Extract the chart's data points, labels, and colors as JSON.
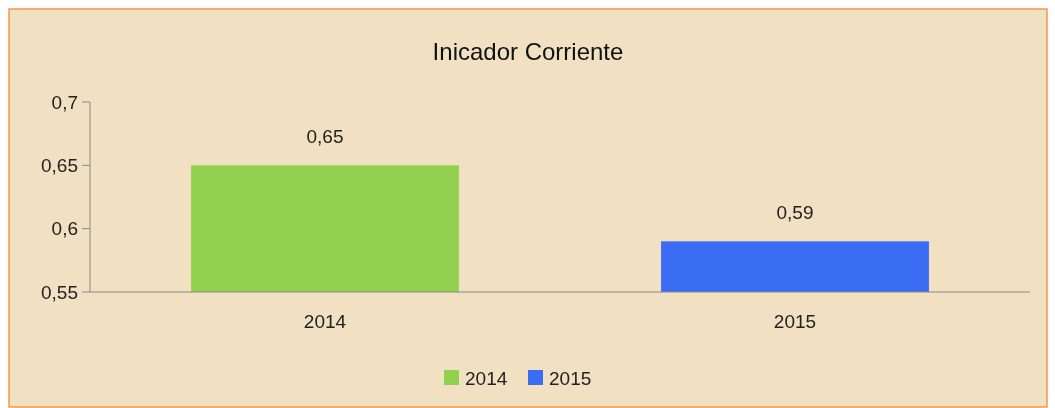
{
  "chart_data": {
    "type": "bar",
    "title": "Inicador Corriente",
    "categories": [
      "2014",
      "2015"
    ],
    "series": [
      {
        "name": "2014",
        "color": "#92d050",
        "values": [
          0.65,
          null
        ],
        "value_labels": [
          "0,65",
          null
        ]
      },
      {
        "name": "2015",
        "color": "#3a6cf4",
        "values": [
          null,
          0.59
        ],
        "value_labels": [
          null,
          "0,59"
        ]
      }
    ],
    "ylim": [
      0.55,
      0.7
    ],
    "yticks": [
      {
        "value": 0.55,
        "label": "0,55"
      },
      {
        "value": 0.6,
        "label": "0,6"
      },
      {
        "value": 0.65,
        "label": "0,65"
      },
      {
        "value": 0.7,
        "label": "0,7"
      }
    ],
    "legend": "bottom"
  }
}
